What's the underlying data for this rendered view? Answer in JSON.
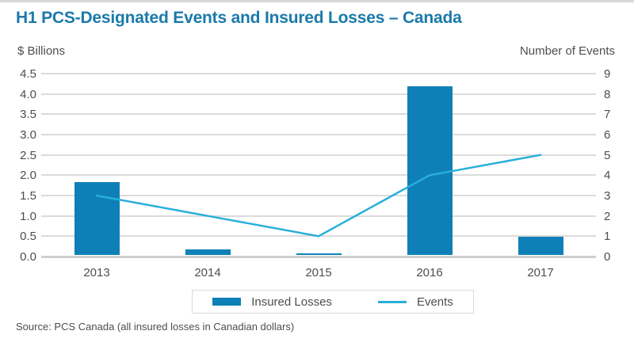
{
  "page": {
    "title": "H1 PCS-Designated Events and Insured Losses – Canada",
    "source": "Source: PCS Canada (all insured losses in Canadian dollars)"
  },
  "axes": {
    "left_title": "$ Billions",
    "right_title": "Number of Events",
    "left_ticks": [
      "4.5",
      "4.0",
      "3.5",
      "3.0",
      "2.5",
      "2.0",
      "1.5",
      "1.0",
      "0.5",
      "0.0"
    ],
    "right_ticks": [
      "9",
      "8",
      "7",
      "6",
      "5",
      "4",
      "3",
      "2",
      "1",
      "0"
    ]
  },
  "colors": {
    "title": "#1b7aa9",
    "bar": "#0e80b7",
    "line": "#29afda",
    "grid": "#dbdbdb",
    "text": "#4d4e50"
  },
  "chart_data": {
    "type": "bar+line",
    "categories": [
      "2013",
      "2014",
      "2015",
      "2016",
      "2017"
    ],
    "series": [
      {
        "name": "Insured Losses",
        "type": "bar",
        "axis": "left",
        "values": [
          1.8,
          0.13,
          0.04,
          4.15,
          0.45
        ]
      },
      {
        "name": "Events",
        "type": "line",
        "axis": "right",
        "values": [
          3,
          2,
          1,
          4,
          5
        ]
      }
    ],
    "title": "H1 PCS-Designated Events and Insured Losses – Canada",
    "xlabel": "",
    "ylabel": "$ Billions",
    "y2label": "Number of Events",
    "ylim": [
      0,
      4.5
    ],
    "y2lim": [
      0,
      9
    ],
    "grid": true,
    "legend_position": "bottom"
  }
}
